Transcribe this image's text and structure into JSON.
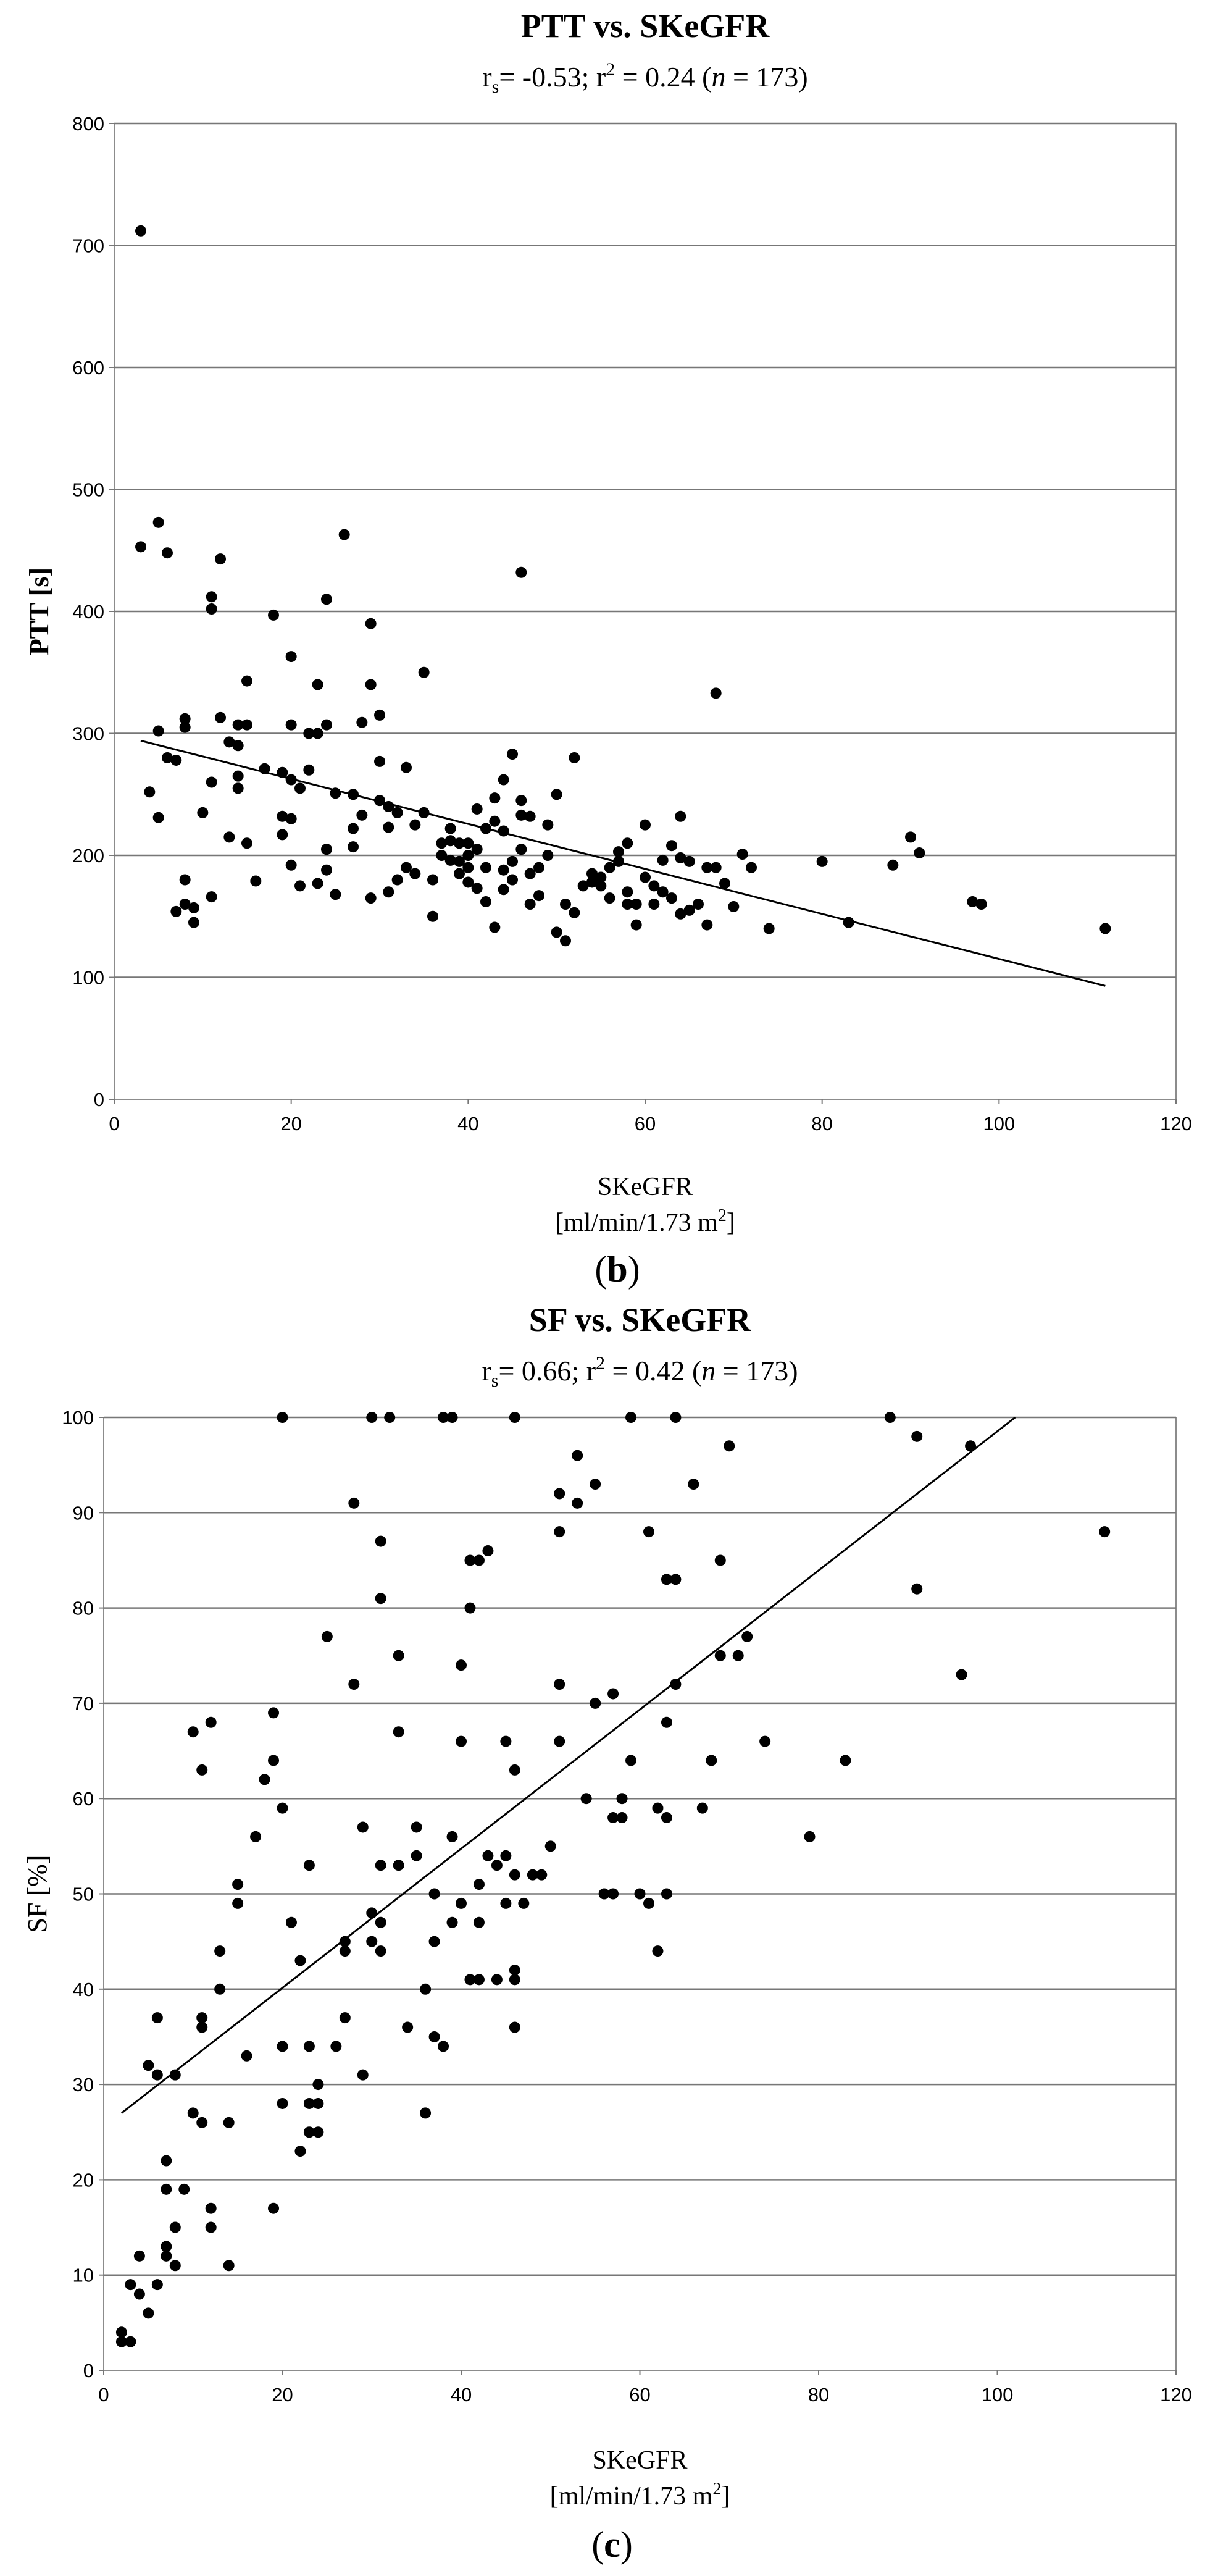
{
  "chart_data": [
    {
      "type": "scatter",
      "title": "PTT vs. SKeGFR",
      "stats": {
        "rs_prefix": "r",
        "rs_sub": "s",
        "rs_value": "= -0.53; r",
        "r2_sup": "2",
        "r2_value": " = 0.24 (",
        "n_label": "n",
        "n_value": " = 173)"
      },
      "xlabel_line1": "SKeGFR",
      "xlabel_line2_pre": "[ml/min/1.73 m",
      "xlabel_line2_sup": "2",
      "xlabel_line2_post": "]",
      "ylabel": "PTT [s]",
      "panel_label": "(b)",
      "xlim": [
        0,
        120
      ],
      "ylim": [
        0,
        800
      ],
      "xticks": [
        "0",
        "20",
        "40",
        "60",
        "80",
        "100",
        "120"
      ],
      "yticks": [
        "0",
        "100",
        "200",
        "300",
        "400",
        "500",
        "600",
        "700",
        "800"
      ],
      "grid": true,
      "trendline": [
        [
          3,
          294
        ],
        [
          112,
          93
        ]
      ],
      "points": [
        [
          3,
          712
        ],
        [
          3,
          453
        ],
        [
          5,
          473
        ],
        [
          6,
          448
        ],
        [
          4,
          252
        ],
        [
          5,
          231
        ],
        [
          5,
          302
        ],
        [
          6,
          280
        ],
        [
          7,
          278
        ],
        [
          7,
          154
        ],
        [
          8,
          180
        ],
        [
          8,
          160
        ],
        [
          9,
          145
        ],
        [
          9,
          157
        ],
        [
          8,
          305
        ],
        [
          8,
          312
        ],
        [
          10,
          235
        ],
        [
          11,
          260
        ],
        [
          11,
          166
        ],
        [
          11,
          402
        ],
        [
          11,
          412
        ],
        [
          12,
          443
        ],
        [
          12,
          313
        ],
        [
          13,
          293
        ],
        [
          14,
          307
        ],
        [
          14,
          290
        ],
        [
          14,
          265
        ],
        [
          14,
          255
        ],
        [
          13,
          215
        ],
        [
          15,
          307
        ],
        [
          15,
          343
        ],
        [
          15,
          210
        ],
        [
          16,
          179
        ],
        [
          17,
          271
        ],
        [
          18,
          397
        ],
        [
          19,
          268
        ],
        [
          19,
          232
        ],
        [
          19,
          217
        ],
        [
          20,
          363
        ],
        [
          20,
          307
        ],
        [
          20,
          262
        ],
        [
          20,
          230
        ],
        [
          20,
          192
        ],
        [
          21,
          255
        ],
        [
          21,
          175
        ],
        [
          22,
          270
        ],
        [
          22,
          300
        ],
        [
          23,
          340
        ],
        [
          23,
          300
        ],
        [
          23,
          177
        ],
        [
          24,
          410
        ],
        [
          24,
          307
        ],
        [
          24,
          205
        ],
        [
          24,
          188
        ],
        [
          25,
          168
        ],
        [
          25,
          251
        ],
        [
          26,
          463
        ],
        [
          27,
          250
        ],
        [
          27,
          222
        ],
        [
          27,
          207
        ],
        [
          28,
          309
        ],
        [
          28,
          233
        ],
        [
          29,
          390
        ],
        [
          29,
          340
        ],
        [
          29,
          165
        ],
        [
          30,
          315
        ],
        [
          30,
          277
        ],
        [
          30,
          245
        ],
        [
          31,
          240
        ],
        [
          31,
          223
        ],
        [
          31,
          170
        ],
        [
          32,
          235
        ],
        [
          32,
          180
        ],
        [
          33,
          272
        ],
        [
          33,
          190
        ],
        [
          34,
          185
        ],
        [
          34,
          225
        ],
        [
          35,
          350
        ],
        [
          35,
          235
        ],
        [
          36,
          150
        ],
        [
          36,
          180
        ],
        [
          37,
          200
        ],
        [
          37,
          210
        ],
        [
          38,
          196
        ],
        [
          38,
          212
        ],
        [
          38,
          222
        ],
        [
          39,
          195
        ],
        [
          39,
          210
        ],
        [
          39,
          185
        ],
        [
          40,
          200
        ],
        [
          40,
          178
        ],
        [
          40,
          210
        ],
        [
          40,
          190
        ],
        [
          41,
          238
        ],
        [
          41,
          205
        ],
        [
          41,
          173
        ],
        [
          42,
          222
        ],
        [
          42,
          190
        ],
        [
          42,
          162
        ],
        [
          43,
          247
        ],
        [
          43,
          228
        ],
        [
          43,
          141
        ],
        [
          44,
          220
        ],
        [
          44,
          262
        ],
        [
          44,
          188
        ],
        [
          44,
          172
        ],
        [
          45,
          283
        ],
        [
          45,
          195
        ],
        [
          45,
          180
        ],
        [
          46,
          432
        ],
        [
          46,
          245
        ],
        [
          46,
          233
        ],
        [
          46,
          205
        ],
        [
          47,
          232
        ],
        [
          47,
          185
        ],
        [
          47,
          160
        ],
        [
          48,
          190
        ],
        [
          48,
          167
        ],
        [
          49,
          225
        ],
        [
          49,
          200
        ],
        [
          50,
          250
        ],
        [
          50,
          137
        ],
        [
          51,
          130
        ],
        [
          51,
          160
        ],
        [
          52,
          280
        ],
        [
          52,
          153
        ],
        [
          53,
          175
        ],
        [
          54,
          178
        ],
        [
          54,
          185
        ],
        [
          55,
          182
        ],
        [
          55,
          175
        ],
        [
          56,
          190
        ],
        [
          56,
          165
        ],
        [
          57,
          203
        ],
        [
          57,
          195
        ],
        [
          58,
          210
        ],
        [
          58,
          170
        ],
        [
          58,
          160
        ],
        [
          59,
          143
        ],
        [
          59,
          160
        ],
        [
          60,
          225
        ],
        [
          60,
          182
        ],
        [
          61,
          175
        ],
        [
          61,
          160
        ],
        [
          62,
          196
        ],
        [
          62,
          170
        ],
        [
          63,
          208
        ],
        [
          63,
          165
        ],
        [
          64,
          232
        ],
        [
          64,
          198
        ],
        [
          64,
          152
        ],
        [
          65,
          155
        ],
        [
          65,
          195
        ],
        [
          66,
          160
        ],
        [
          67,
          190
        ],
        [
          67,
          143
        ],
        [
          68,
          333
        ],
        [
          68,
          190
        ],
        [
          69,
          177
        ],
        [
          70,
          158
        ],
        [
          71,
          201
        ],
        [
          72,
          190
        ],
        [
          74,
          140
        ],
        [
          80,
          195
        ],
        [
          83,
          145
        ],
        [
          88,
          192
        ],
        [
          90,
          215
        ],
        [
          91,
          202
        ],
        [
          97,
          162
        ],
        [
          98,
          160
        ],
        [
          112,
          140
        ]
      ]
    },
    {
      "type": "scatter",
      "title": "SF vs. SKeGFR",
      "stats": {
        "rs_prefix": "r",
        "rs_sub": "s",
        "rs_value": "= 0.66; r",
        "r2_sup": "2",
        "r2_value": " = 0.42 (",
        "n_label": "n",
        "n_value": " = 173)"
      },
      "xlabel_line1": "SKeGFR",
      "xlabel_line2_pre": "[ml/min/1.73 m",
      "xlabel_line2_sup": "2",
      "xlabel_line2_post": "]",
      "ylabel": "SF [%]",
      "panel_label": "(c)",
      "xlim": [
        0,
        120
      ],
      "ylim": [
        0,
        100
      ],
      "xticks": [
        "0",
        "20",
        "40",
        "60",
        "80",
        "100",
        "120"
      ],
      "yticks": [
        "0",
        "10",
        "20",
        "30",
        "40",
        "50",
        "60",
        "70",
        "80",
        "90",
        "100"
      ],
      "grid": true,
      "trendline": [
        [
          2,
          27
        ],
        [
          102,
          100
        ]
      ],
      "points": [
        [
          2,
          3
        ],
        [
          2,
          4
        ],
        [
          3,
          9
        ],
        [
          3,
          3
        ],
        [
          4,
          8
        ],
        [
          4,
          12
        ],
        [
          5,
          6
        ],
        [
          5,
          32
        ],
        [
          6,
          31
        ],
        [
          6,
          9
        ],
        [
          6,
          37
        ],
        [
          7,
          12
        ],
        [
          7,
          13
        ],
        [
          7,
          19
        ],
        [
          7,
          22
        ],
        [
          8,
          15
        ],
        [
          8,
          11
        ],
        [
          8,
          31
        ],
        [
          9,
          19
        ],
        [
          10,
          67
        ],
        [
          10,
          27
        ],
        [
          11,
          63
        ],
        [
          11,
          36
        ],
        [
          11,
          37
        ],
        [
          11,
          26
        ],
        [
          12,
          68
        ],
        [
          12,
          15
        ],
        [
          12,
          17
        ],
        [
          13,
          44
        ],
        [
          13,
          40
        ],
        [
          14,
          26
        ],
        [
          14,
          11
        ],
        [
          15,
          49
        ],
        [
          15,
          51
        ],
        [
          16,
          33
        ],
        [
          17,
          56
        ],
        [
          18,
          62
        ],
        [
          19,
          69
        ],
        [
          19,
          64
        ],
        [
          19,
          17
        ],
        [
          20,
          59
        ],
        [
          20,
          34
        ],
        [
          20,
          28
        ],
        [
          20,
          100
        ],
        [
          21,
          47
        ],
        [
          22,
          43
        ],
        [
          22,
          23
        ],
        [
          23,
          25
        ],
        [
          23,
          28
        ],
        [
          23,
          53
        ],
        [
          23,
          34
        ],
        [
          24,
          30
        ],
        [
          24,
          25
        ],
        [
          24,
          28
        ],
        [
          25,
          77
        ],
        [
          26,
          34
        ],
        [
          27,
          37
        ],
        [
          27,
          44
        ],
        [
          27,
          45
        ],
        [
          28,
          72
        ],
        [
          28,
          91
        ],
        [
          29,
          57
        ],
        [
          29,
          31
        ],
        [
          30,
          100
        ],
        [
          30,
          48
        ],
        [
          30,
          45
        ],
        [
          31,
          53
        ],
        [
          31,
          47
        ],
        [
          31,
          44
        ],
        [
          31,
          81
        ],
        [
          31,
          87
        ],
        [
          32,
          100
        ],
        [
          33,
          53
        ],
        [
          33,
          75
        ],
        [
          33,
          67
        ],
        [
          34,
          36
        ],
        [
          35,
          57
        ],
        [
          35,
          54
        ],
        [
          36,
          27
        ],
        [
          36,
          40
        ],
        [
          37,
          50
        ],
        [
          37,
          45
        ],
        [
          37,
          35
        ],
        [
          38,
          100
        ],
        [
          38,
          34
        ],
        [
          39,
          56
        ],
        [
          39,
          47
        ],
        [
          39,
          100
        ],
        [
          40,
          74
        ],
        [
          40,
          66
        ],
        [
          40,
          49
        ],
        [
          41,
          85
        ],
        [
          41,
          80
        ],
        [
          41,
          41
        ],
        [
          42,
          85
        ],
        [
          42,
          47
        ],
        [
          42,
          41
        ],
        [
          42,
          51
        ],
        [
          43,
          86
        ],
        [
          43,
          54
        ],
        [
          44,
          41
        ],
        [
          44,
          53
        ],
        [
          45,
          54
        ],
        [
          45,
          49
        ],
        [
          45,
          66
        ],
        [
          46,
          100
        ],
        [
          46,
          63
        ],
        [
          46,
          42
        ],
        [
          46,
          36
        ],
        [
          46,
          52
        ],
        [
          46,
          41
        ],
        [
          47,
          49
        ],
        [
          48,
          52
        ],
        [
          49,
          52
        ],
        [
          50,
          55
        ],
        [
          51,
          92
        ],
        [
          51,
          88
        ],
        [
          51,
          66
        ],
        [
          51,
          72
        ],
        [
          53,
          96
        ],
        [
          53,
          91
        ],
        [
          54,
          60
        ],
        [
          55,
          93
        ],
        [
          55,
          70
        ],
        [
          56,
          50
        ],
        [
          57,
          50
        ],
        [
          57,
          71
        ],
        [
          57,
          58
        ],
        [
          58,
          58
        ],
        [
          58,
          60
        ],
        [
          59,
          100
        ],
        [
          59,
          64
        ],
        [
          60,
          50
        ],
        [
          61,
          88
        ],
        [
          61,
          49
        ],
        [
          62,
          44
        ],
        [
          62,
          59
        ],
        [
          63,
          58
        ],
        [
          63,
          50
        ],
        [
          63,
          68
        ],
        [
          63,
          83
        ],
        [
          64,
          83
        ],
        [
          64,
          72
        ],
        [
          64,
          100
        ],
        [
          66,
          93
        ],
        [
          67,
          59
        ],
        [
          68,
          64
        ],
        [
          69,
          75
        ],
        [
          69,
          85
        ],
        [
          70,
          97
        ],
        [
          71,
          75
        ],
        [
          72,
          77
        ],
        [
          74,
          66
        ],
        [
          79,
          56
        ],
        [
          83,
          64
        ],
        [
          88,
          100
        ],
        [
          91,
          98
        ],
        [
          91,
          82
        ],
        [
          96,
          73
        ],
        [
          97,
          97
        ],
        [
          112,
          88
        ]
      ]
    }
  ]
}
